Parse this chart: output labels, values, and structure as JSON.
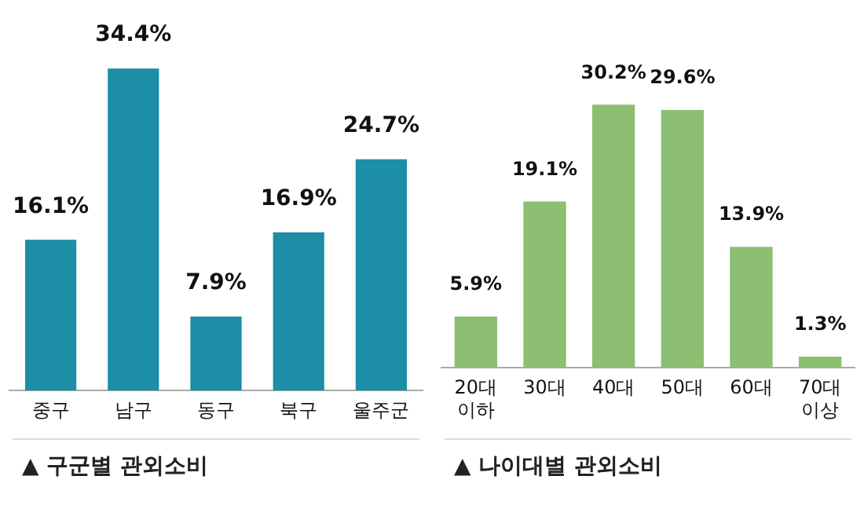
{
  "chart_data": [
    {
      "type": "bar",
      "title": "▲ 구군별 관외소비",
      "categories": [
        "중구",
        "남구",
        "동구",
        "북구",
        "울주군"
      ],
      "values": [
        16.1,
        34.4,
        7.9,
        16.9,
        24.7
      ],
      "value_labels": [
        "16.1%",
        "34.4%",
        "7.9%",
        "16.9%",
        "24.7%"
      ],
      "color": "#1c8ea6",
      "grid": false,
      "legend": false
    },
    {
      "type": "bar",
      "title": "▲ 나이대별 관외소비",
      "categories": [
        "20대 이하",
        "30대",
        "40대",
        "50대",
        "60대",
        "70대 이상"
      ],
      "values": [
        5.9,
        19.1,
        30.2,
        29.6,
        13.9,
        1.3
      ],
      "value_labels": [
        "5.9%",
        "19.1%",
        "30.2%",
        "29.6%",
        "13.9%",
        "1.3%"
      ],
      "color": "#8cbf72",
      "grid": false,
      "legend": false
    }
  ]
}
